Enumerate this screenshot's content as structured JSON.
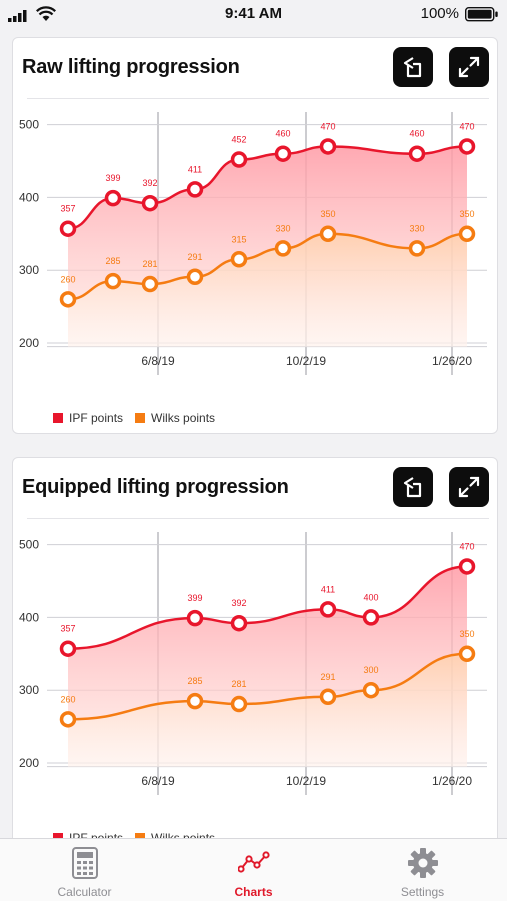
{
  "status_bar": {
    "time": "9:41 AM",
    "battery": "100%"
  },
  "colors": {
    "ipf": "#e8162c",
    "wilks": "#f57c12",
    "tab_active": "#e0192a",
    "tab_inactive": "#8e8e93"
  },
  "charts": [
    {
      "title": "Raw lifting progression",
      "x_labels": [
        "6/8/19",
        "10/2/19",
        "1/26/20"
      ],
      "y_ticks": [
        500,
        400,
        300,
        200
      ],
      "series": [
        {
          "name": "IPF points",
          "values": [
            357,
            399,
            392,
            411,
            452,
            460,
            470,
            460,
            470
          ]
        },
        {
          "name": "Wilks points",
          "values": [
            260,
            285,
            281,
            291,
            315,
            330,
            350,
            330,
            350
          ]
        }
      ]
    },
    {
      "title": "Equipped lifting progression",
      "x_labels": [
        "6/8/19",
        "10/2/19",
        "1/26/20"
      ],
      "y_ticks": [
        500,
        400,
        300,
        200
      ],
      "series": [
        {
          "name": "IPF points",
          "values": [
            357,
            399,
            392,
            411,
            400,
            470
          ]
        },
        {
          "name": "Wilks points",
          "values": [
            260,
            285,
            281,
            291,
            300,
            350
          ]
        }
      ]
    }
  ],
  "chart_data": [
    {
      "type": "area",
      "title": "Raw lifting progression",
      "x": [
        "",
        "",
        "",
        "",
        "",
        "",
        "",
        "",
        ""
      ],
      "x_tick_labels": [
        "6/8/19",
        "10/2/19",
        "1/26/20"
      ],
      "ylim": [
        200,
        500
      ],
      "series": [
        {
          "name": "IPF points",
          "values": [
            357,
            399,
            392,
            411,
            452,
            460,
            470,
            460,
            470
          ]
        },
        {
          "name": "Wilks points",
          "values": [
            260,
            285,
            281,
            291,
            315,
            330,
            350,
            330,
            350
          ]
        }
      ],
      "legend": "bottom-left",
      "grid": true
    },
    {
      "type": "area",
      "title": "Equipped lifting progression",
      "x": [
        "",
        "",
        "",
        "",
        "",
        ""
      ],
      "x_tick_labels": [
        "6/8/19",
        "10/2/19",
        "1/26/20"
      ],
      "ylim": [
        200,
        500
      ],
      "series": [
        {
          "name": "IPF points",
          "values": [
            357,
            399,
            392,
            411,
            400,
            470
          ]
        },
        {
          "name": "Wilks points",
          "values": [
            260,
            285,
            281,
            291,
            300,
            350
          ]
        }
      ],
      "legend": "bottom-left",
      "grid": true
    }
  ],
  "tabs": [
    {
      "label": "Calculator",
      "icon": "calculator-icon",
      "active": false
    },
    {
      "label": "Charts",
      "icon": "chart-icon",
      "active": true
    },
    {
      "label": "Settings",
      "icon": "gear-icon",
      "active": false
    }
  ]
}
